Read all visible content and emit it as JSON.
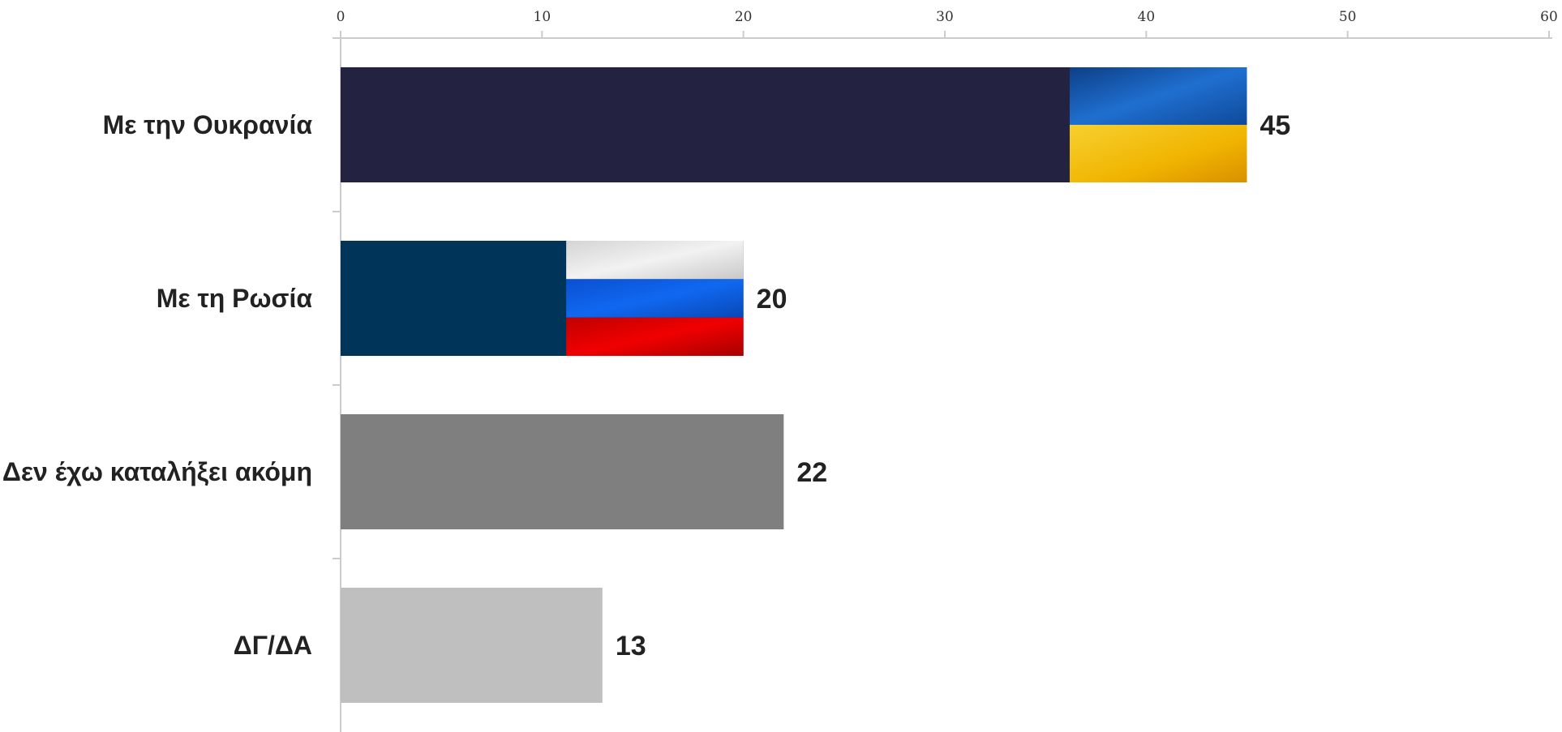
{
  "chart_data": {
    "type": "bar",
    "orientation": "horizontal",
    "categories": [
      "Με την Ουκρανία",
      "Με τη Ρωσία",
      "Δεν έχω καταλήξει ακόμη",
      "ΔΓ/ΔΑ"
    ],
    "values": [
      45,
      20,
      22,
      13
    ],
    "value_labels": [
      "45",
      "20",
      "22",
      "13"
    ],
    "xlim": [
      0,
      60
    ],
    "x_ticks": [
      "0",
      "10",
      "20",
      "30",
      "40",
      "50",
      "60"
    ],
    "x_axis_position": "top",
    "grid": false,
    "legend": "none",
    "bar_colors": [
      "#232240",
      "#003459",
      "#7f7f7f",
      "#bfbfbf"
    ],
    "bar_decorations": [
      "ukraine-flag",
      "russia-flag",
      "",
      ""
    ],
    "flag_colors": {
      "ukraine": [
        "#1a5fb4",
        "#f2c200"
      ],
      "russia": [
        "#e6e6e6",
        "#0a56d8",
        "#e00000"
      ]
    }
  }
}
